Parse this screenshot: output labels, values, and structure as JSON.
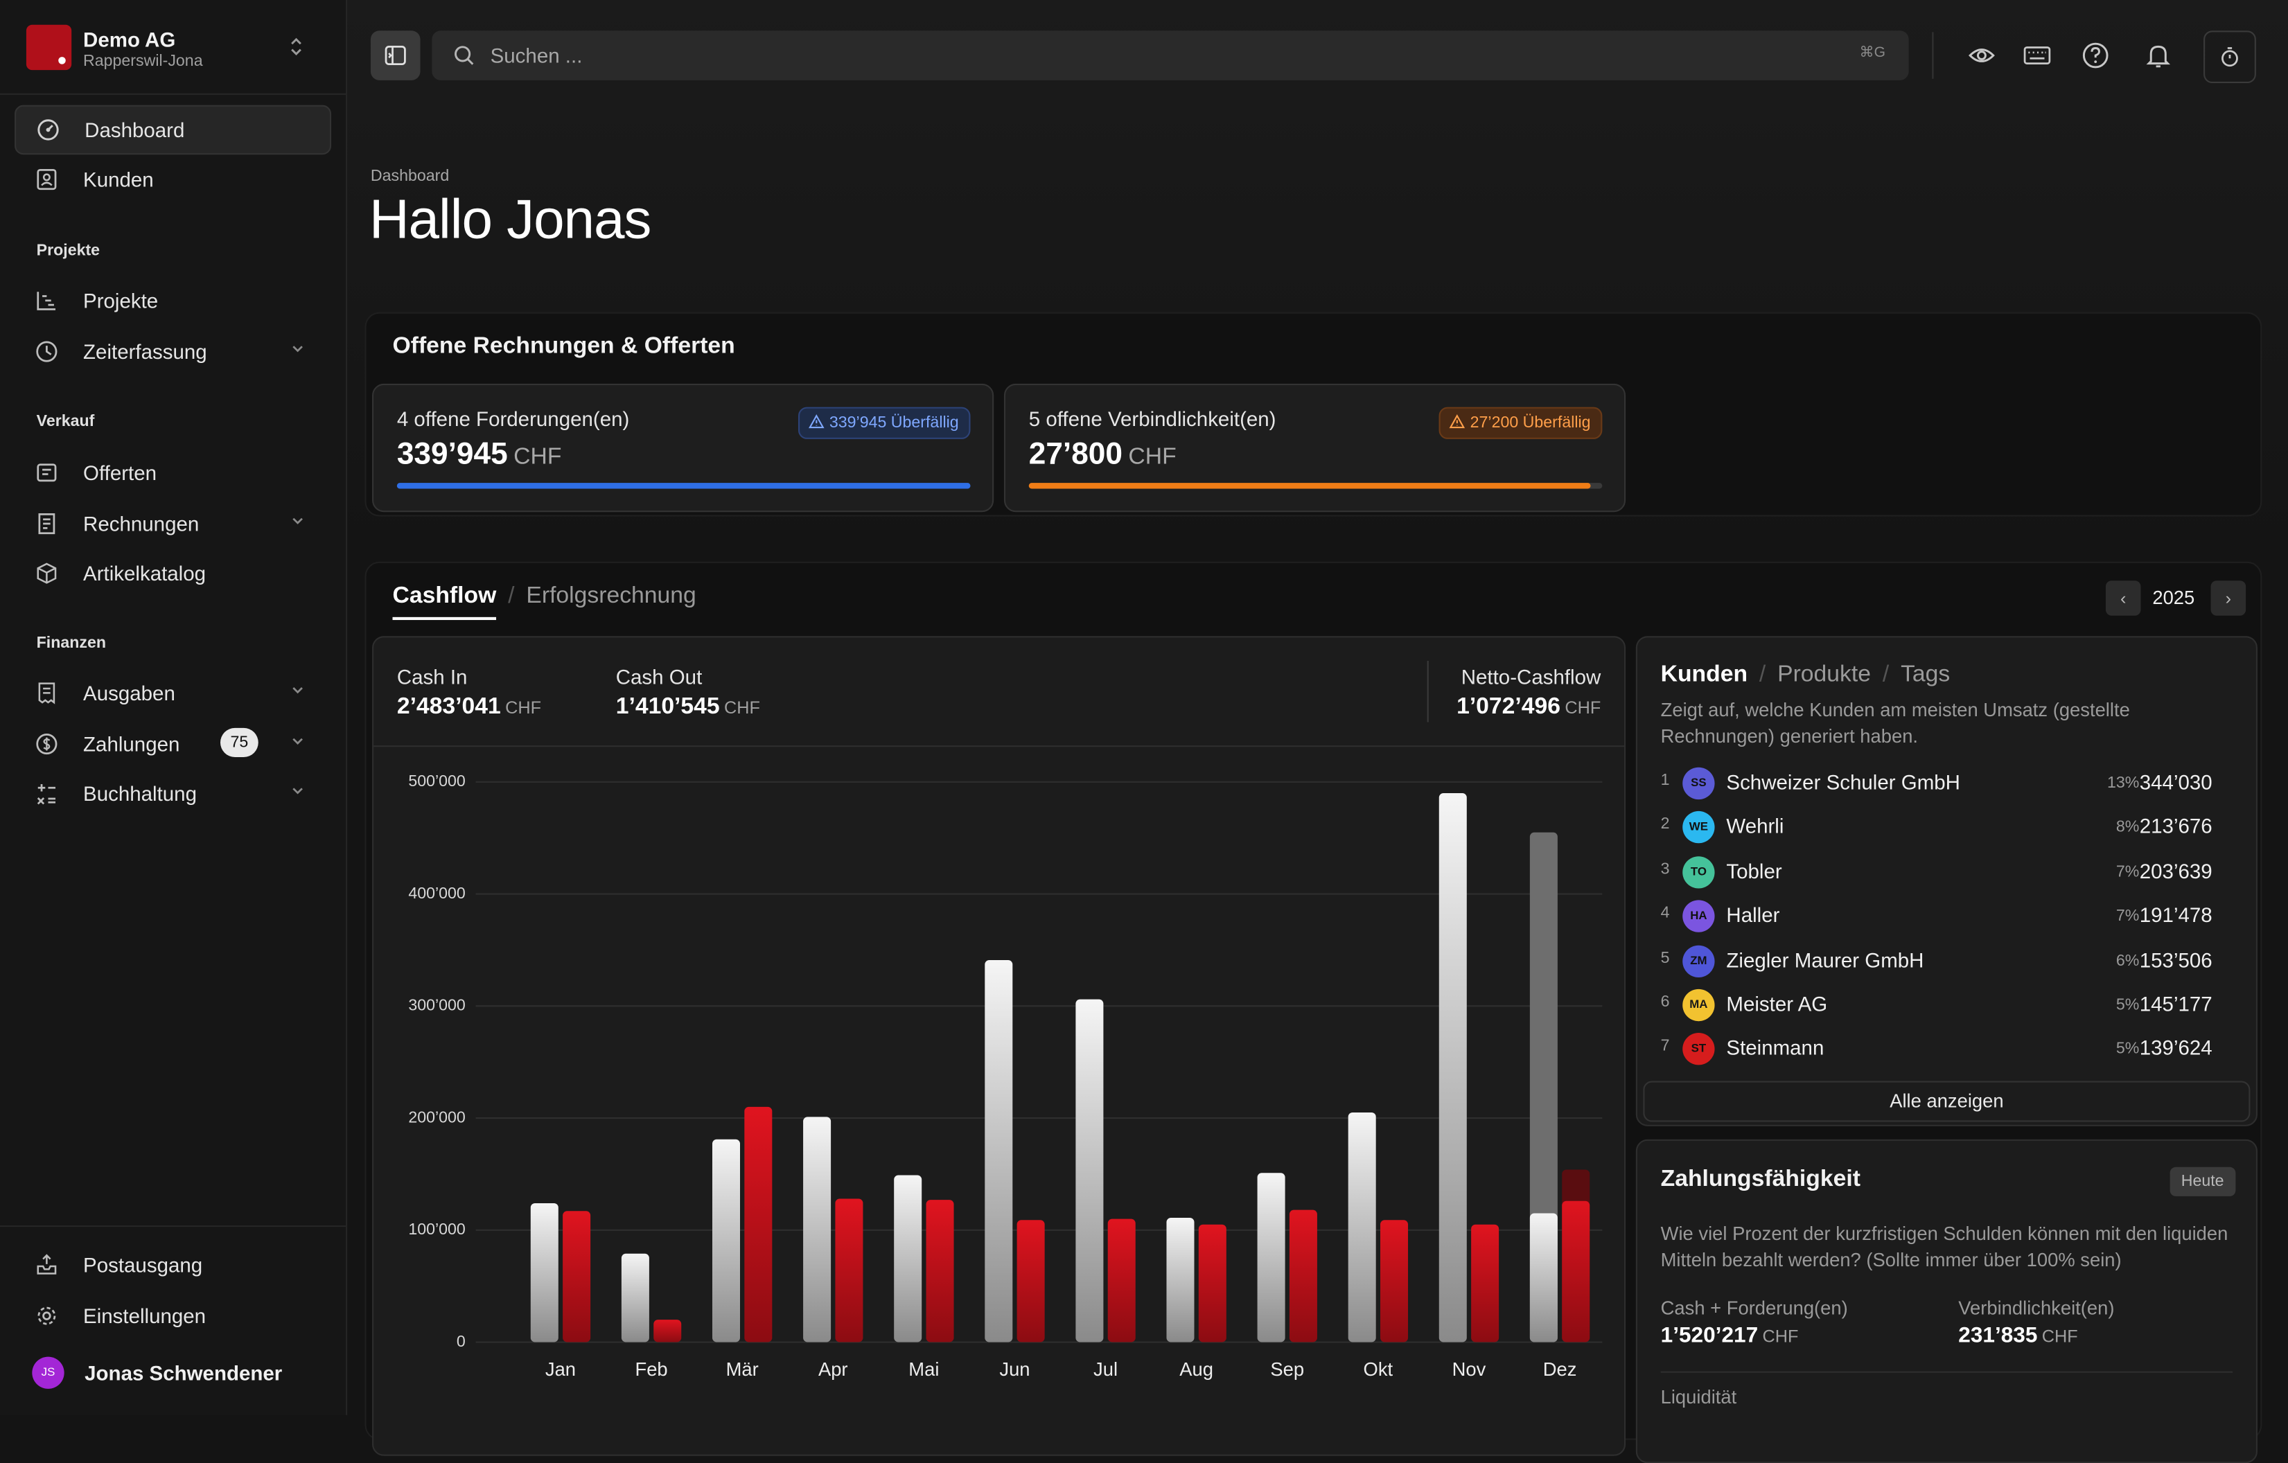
{
  "org": {
    "name": "Demo AG",
    "location": "Rapperswil-Jona"
  },
  "sidebar": {
    "top_items": [
      {
        "label": "Dashboard",
        "icon": "dashboard-icon"
      },
      {
        "label": "Kunden",
        "icon": "contacts-icon"
      }
    ],
    "sections": [
      {
        "title": "Projekte",
        "items": [
          {
            "label": "Projekte"
          },
          {
            "label": "Zeiterfassung"
          }
        ]
      },
      {
        "title": "Verkauf",
        "items": [
          {
            "label": "Offerten"
          },
          {
            "label": "Rechnungen"
          },
          {
            "label": "Artikelkatalog"
          }
        ]
      },
      {
        "title": "Finanzen",
        "items": [
          {
            "label": "Ausgaben"
          },
          {
            "label": "Zahlungen",
            "badge": "75"
          },
          {
            "label": "Buchhaltung"
          }
        ]
      }
    ],
    "bottom_items": [
      {
        "label": "Postausgang"
      },
      {
        "label": "Einstellungen"
      }
    ],
    "user": {
      "initials": "JS",
      "name": "Jonas Schwendener"
    }
  },
  "topbar": {
    "search_placeholder": "Suchen ...",
    "shortcut": "⌘G"
  },
  "page": {
    "breadcrumb": "Dashboard",
    "title": "Hallo Jonas"
  },
  "invoices": {
    "title": "Offene Rechnungen & Offerten",
    "receivables": {
      "label": "4 offene Forderungen(en)",
      "amount": "339’945",
      "currency": "CHF",
      "overdue": "339’945 Überfällig",
      "progress": 1.0,
      "color": "#2f6fe6"
    },
    "payables": {
      "label": "5 offene Verbindlichkeit(en)",
      "amount": "27’800",
      "currency": "CHF",
      "overdue": "27’200 Überfällig",
      "progress": 0.98,
      "color": "#f07d16"
    }
  },
  "cashflow": {
    "tab_active": "Cashflow",
    "tab_inactive": "Erfolgsrechnung",
    "year": "2025",
    "cash_in": {
      "label": "Cash In",
      "value": "2’483’041",
      "currency": "CHF"
    },
    "cash_out": {
      "label": "Cash Out",
      "value": "1’410’545",
      "currency": "CHF"
    },
    "net": {
      "label": "Netto-Cashflow",
      "value": "1’072’496",
      "currency": "CHF"
    }
  },
  "chart_data": {
    "type": "bar",
    "categories": [
      "Jan",
      "Feb",
      "Mär",
      "Apr",
      "Mai",
      "Jun",
      "Jul",
      "Aug",
      "Sep",
      "Okt",
      "Nov",
      "Dez"
    ],
    "y_ticks": [
      "0",
      "100’000",
      "200’000",
      "300’000",
      "400’000",
      "500’000"
    ],
    "ylim": [
      0,
      500000
    ],
    "series": [
      {
        "values": [
          124000,
          79000,
          181000,
          201000,
          149000,
          341000,
          306000,
          111000,
          151000,
          205000,
          490000,
          115000
        ],
        "color": "#e8e8e8"
      },
      {
        "values": [
          117000,
          20000,
          210000,
          128000,
          127000,
          109000,
          110000,
          105000,
          118000,
          109000,
          105000,
          126000
        ],
        "color": "#c8121b"
      }
    ],
    "projection": {
      "category": "Dez",
      "in_value": 455000,
      "out_value": 154000
    },
    "grid": true
  },
  "customers": {
    "tabs": [
      "Kunden",
      "Produkte",
      "Tags"
    ],
    "description": "Zeigt auf, welche Kunden am meisten Umsatz (gestellte Rechnungen) generiert haben.",
    "rows": [
      {
        "rank": "1",
        "initials": "SS",
        "name": "Schweizer Schuler GmbH",
        "pct": "13%",
        "amount": "344’030",
        "color": "#5b5bd6"
      },
      {
        "rank": "2",
        "initials": "WE",
        "name": "Wehrli",
        "pct": "8%",
        "amount": "213’676",
        "color": "#2bb8f0"
      },
      {
        "rank": "3",
        "initials": "TO",
        "name": "Tobler",
        "pct": "7%",
        "amount": "203’639",
        "color": "#45c29a"
      },
      {
        "rank": "4",
        "initials": "HA",
        "name": "Haller",
        "pct": "7%",
        "amount": "191’478",
        "color": "#7b55e0"
      },
      {
        "rank": "5",
        "initials": "ZM",
        "name": "Ziegler Maurer GmbH",
        "pct": "6%",
        "amount": "153’506",
        "color": "#4f56d8"
      },
      {
        "rank": "6",
        "initials": "MA",
        "name": "Meister AG",
        "pct": "5%",
        "amount": "145’177",
        "color": "#f2c230"
      },
      {
        "rank": "7",
        "initials": "ST",
        "name": "Steinmann",
        "pct": "5%",
        "amount": "139’624",
        "color": "#d61d1d"
      }
    ],
    "show_all": "Alle anzeigen"
  },
  "liquidity": {
    "title": "Zahlungsfähigkeit",
    "badge": "Heute",
    "description": "Wie viel Prozent der kurzfristigen Schulden können mit den liquiden Mitteln bezahlt werden? (Sollte immer über 100% sein)",
    "assets": {
      "label": "Cash + Forderung(en)",
      "value": "1’520’217",
      "currency": "CHF"
    },
    "liabilities": {
      "label": "Verbindlichkeit(en)",
      "value": "231’835",
      "currency": "CHF"
    },
    "footer_label": "Liquidität"
  }
}
